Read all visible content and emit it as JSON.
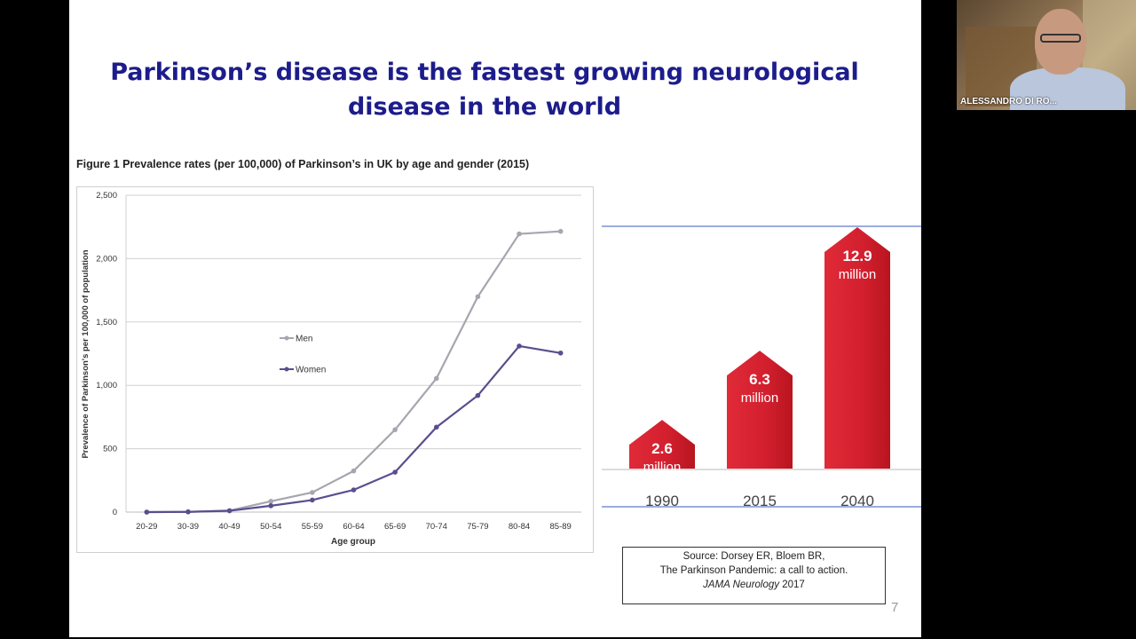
{
  "slide": {
    "title": "Parkinson’s disease is the fastest growing neurological disease in the world",
    "figure_caption": "Figure 1  Prevalence rates (per 100,000) of Parkinson’s in UK by age and gender (2015)",
    "page_number": "7",
    "source_line1": "Source: Dorsey ER, Bloem BR,",
    "source_line2": "The Parkinson Pandemic: a call to action.",
    "source_line3_journal": "JAMA Neurology",
    "source_line3_year": " 2017"
  },
  "webcam": {
    "name": "ALESSANDRO DI RO..."
  },
  "chart_data": [
    {
      "type": "line",
      "xlabel": "Age group",
      "ylabel": "Prevalence of Parkinson's per 100,000 of population",
      "categories": [
        "20-29",
        "30-39",
        "40-49",
        "50-54",
        "55-59",
        "60-64",
        "65-69",
        "70-74",
        "75-79",
        "80-84",
        "85-89"
      ],
      "ylim": [
        0,
        2500
      ],
      "yticks": [
        0,
        500,
        1000,
        1500,
        2000,
        2500
      ],
      "ytick_labels": [
        "0",
        "500",
        "1,000",
        "1,500",
        "2,000",
        "2,500"
      ],
      "grid": true,
      "legend": "inside-left",
      "series": [
        {
          "name": "Men",
          "color": "#a6a6b0",
          "values": [
            0,
            2,
            12,
            85,
            155,
            325,
            650,
            1055,
            1700,
            2195,
            2215
          ]
        },
        {
          "name": "Women",
          "color": "#5b4d8e",
          "values": [
            0,
            2,
            10,
            50,
            95,
            175,
            315,
            670,
            920,
            1310,
            1255
          ]
        }
      ]
    },
    {
      "type": "bar",
      "categories": [
        "1990",
        "2015",
        "2040"
      ],
      "values": [
        2.6,
        6.3,
        12.9
      ],
      "value_labels": [
        "2.6",
        "6.3",
        "12.9"
      ],
      "unit_label": "million",
      "color": "#d21f2e"
    }
  ]
}
